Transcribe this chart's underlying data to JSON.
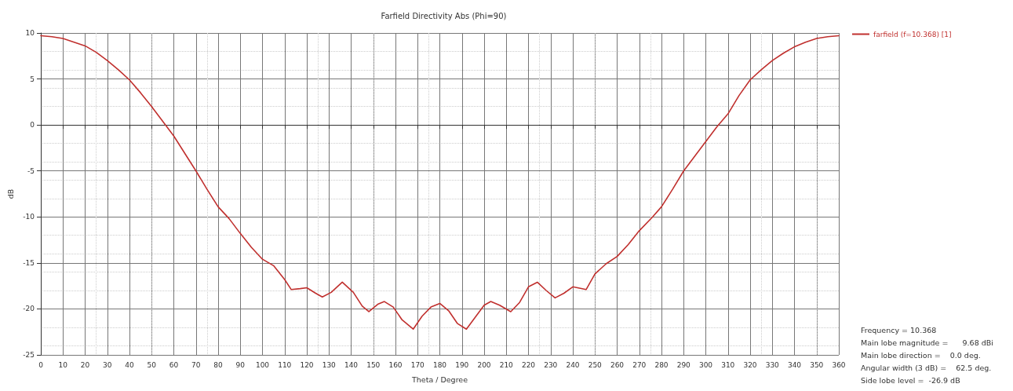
{
  "chart_data": {
    "type": "line",
    "title": "Farfield Directivity Abs (Phi=90)",
    "xlabel": "Theta / Degree",
    "ylabel": "dB",
    "series": [
      {
        "name": "farfield (f=10.368) [1]",
        "color": "#c0302e",
        "x": [
          0,
          5,
          10,
          15,
          20,
          25,
          30,
          35,
          40,
          45,
          50,
          55,
          60,
          65,
          70,
          75,
          80,
          85,
          90,
          95,
          100,
          105,
          110,
          113,
          117,
          120,
          124,
          127,
          131,
          136,
          141,
          145,
          148,
          152,
          155,
          159,
          163,
          168,
          172,
          176,
          180,
          184,
          188,
          192,
          196,
          200,
          203,
          207,
          212,
          216,
          220,
          224,
          228,
          232,
          236,
          240,
          246,
          250,
          255,
          260,
          265,
          270,
          276,
          280,
          285,
          290,
          295,
          300,
          305,
          310,
          315,
          320,
          325,
          330,
          335,
          340,
          345,
          350,
          355,
          360
        ],
        "values": [
          9.7,
          9.6,
          9.4,
          9.0,
          8.6,
          7.9,
          7.0,
          6.0,
          4.9,
          3.5,
          2.0,
          0.4,
          -1.2,
          -3.1,
          -5.0,
          -7.0,
          -8.9,
          -10.2,
          -11.8,
          -13.3,
          -14.6,
          -15.3,
          -16.8,
          -17.9,
          -17.8,
          -17.7,
          -18.3,
          -18.7,
          -18.2,
          -17.1,
          -18.2,
          -19.7,
          -20.3,
          -19.5,
          -19.2,
          -19.8,
          -21.2,
          -22.2,
          -20.8,
          -19.8,
          -19.4,
          -20.2,
          -21.6,
          -22.2,
          -20.9,
          -19.6,
          -19.2,
          -19.6,
          -20.3,
          -19.3,
          -17.6,
          -17.1,
          -18.0,
          -18.8,
          -18.3,
          -17.6,
          -17.9,
          -16.2,
          -15.1,
          -14.3,
          -13.0,
          -11.5,
          -10.0,
          -8.9,
          -7.0,
          -5.0,
          -3.4,
          -1.8,
          -0.2,
          1.2,
          3.2,
          4.9,
          6.0,
          7.0,
          7.8,
          8.5,
          9.0,
          9.4,
          9.6,
          9.7
        ]
      }
    ],
    "xlim": [
      0,
      360
    ],
    "xticks": [
      0,
      10,
      20,
      30,
      40,
      50,
      60,
      70,
      80,
      90,
      100,
      110,
      120,
      130,
      140,
      150,
      160,
      170,
      180,
      190,
      200,
      210,
      220,
      230,
      240,
      250,
      260,
      270,
      280,
      290,
      300,
      310,
      320,
      330,
      340,
      350,
      360
    ],
    "ylim": [
      -25,
      10
    ],
    "yticks": [
      -25,
      -20,
      -15,
      -10,
      -5,
      0,
      5,
      10
    ],
    "grid": true,
    "legend": "top right",
    "marker": "none",
    "line_style": "solid",
    "annotations": [
      "Frequency = 10.368",
      "Main lobe magnitude =      9.68 dBi",
      "Main lobe direction =    0.0 deg.",
      "Angular width (3 dB) =    62.5 deg.",
      "Side lobe level =  -26.9 dB"
    ]
  }
}
